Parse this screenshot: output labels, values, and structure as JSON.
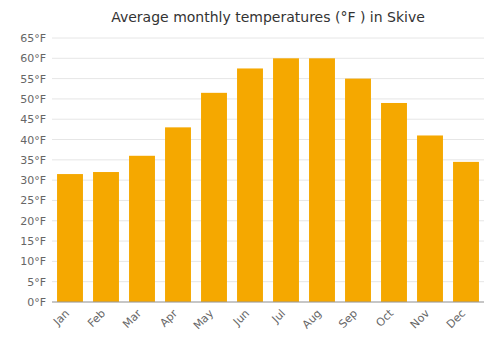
{
  "chart_data": {
    "type": "bar",
    "title": "Average monthly temperatures (°F ) in Skive",
    "categories": [
      "Jan",
      "Feb",
      "Mar",
      "Apr",
      "May",
      "Jun",
      "Jul",
      "Aug",
      "Sep",
      "Oct",
      "Nov",
      "Dec"
    ],
    "values": [
      31.5,
      32.0,
      36.0,
      43.0,
      51.5,
      57.5,
      60.0,
      60.0,
      55.0,
      49.0,
      41.0,
      34.5
    ],
    "color": "#F5A800",
    "ylim": [
      0,
      65
    ],
    "yticks": [
      {
        "value": 0,
        "label": "0°F"
      },
      {
        "value": 5,
        "label": "5°F"
      },
      {
        "value": 10,
        "label": "10°F"
      },
      {
        "value": 15,
        "label": "15°F"
      },
      {
        "value": 20,
        "label": "20°F"
      },
      {
        "value": 25,
        "label": "25°F"
      },
      {
        "value": 30,
        "label": "30°F"
      },
      {
        "value": 35,
        "label": "35°F"
      },
      {
        "value": 40,
        "label": "40°F"
      },
      {
        "value": 45,
        "label": "45°F"
      },
      {
        "value": 50,
        "label": "50°F"
      },
      {
        "value": 55,
        "label": "55°F"
      },
      {
        "value": 60,
        "label": "60°F"
      },
      {
        "value": 65,
        "label": "65°F"
      }
    ],
    "grid": true
  }
}
